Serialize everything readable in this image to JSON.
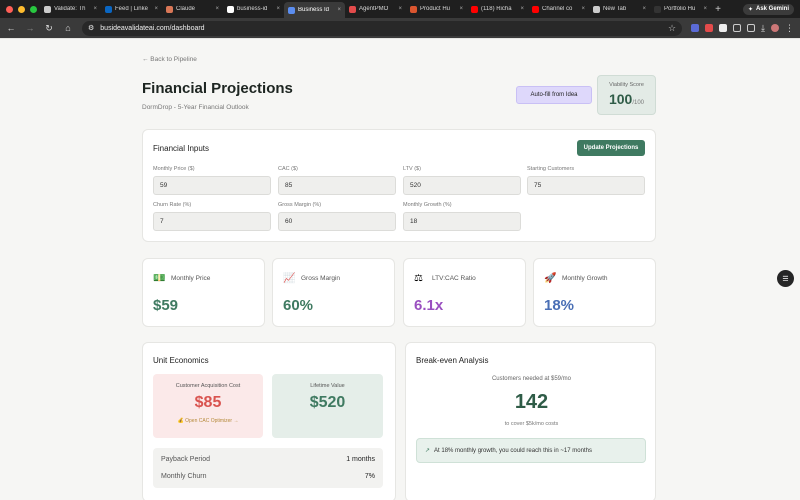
{
  "browser": {
    "tabs": [
      {
        "title": "Validate: Th",
        "color": "#cccccc"
      },
      {
        "title": "Feed | Linke",
        "color": "#0a66c2"
      },
      {
        "title": "Claude",
        "color": "#d97757"
      },
      {
        "title": "business-id",
        "color": "#ffffff"
      },
      {
        "title": "Business Id",
        "color": "#5b8def",
        "active": true
      },
      {
        "title": "AgentPMO",
        "color": "#e34b4b"
      },
      {
        "title": "Product Hu",
        "color": "#da552f"
      },
      {
        "title": "(118) Richa",
        "color": "#ff0000"
      },
      {
        "title": "Channel co",
        "color": "#ff0000"
      },
      {
        "title": "New Tab",
        "color": "#cccccc"
      },
      {
        "title": "Portfolio Hu",
        "color": "#333333"
      }
    ],
    "ask_gemini": "Ask Gemini",
    "url": "busideavalidateai.com/dashboard"
  },
  "header": {
    "back_link": "← Back to Pipeline",
    "title": "Financial Projections",
    "subtitle": "DormDrop - 5-Year Financial Outlook",
    "autofill_button": "Auto-fill from Idea",
    "viability_label": "Viability Score",
    "viability_value": "100",
    "viability_max": "/100"
  },
  "inputs": {
    "title": "Financial Inputs",
    "update_button": "Update Projections",
    "fields": [
      {
        "label": "Monthly Price ($)",
        "value": "59"
      },
      {
        "label": "CAC ($)",
        "value": "85"
      },
      {
        "label": "LTV ($)",
        "value": "520"
      },
      {
        "label": "Starting Customers",
        "value": "75"
      },
      {
        "label": "Churn Rate (%)",
        "value": "7"
      },
      {
        "label": "Gross Margin (%)",
        "value": "60"
      },
      {
        "label": "Monthly Growth (%)",
        "value": "18"
      }
    ]
  },
  "metrics": [
    {
      "icon": "💵",
      "icon_name": "money-icon",
      "label": "Monthly Price",
      "value": "$59",
      "color": "#3f7a61"
    },
    {
      "icon": "📈",
      "icon_name": "chart-icon",
      "label": "Gross Margin",
      "value": "60%",
      "color": "#3f7a61"
    },
    {
      "icon": "⚖",
      "icon_name": "scale-icon",
      "label": "LTV:CAC Ratio",
      "value": "6.1x",
      "color": "#9a4fc0"
    },
    {
      "icon": "🚀",
      "icon_name": "rocket-icon",
      "label": "Monthly Growth",
      "value": "18%",
      "color": "#4a6fb5"
    }
  ],
  "unit_economics": {
    "title": "Unit Economics",
    "cac_label": "Customer Acquisition Cost",
    "cac_value": "$85",
    "cac_hint": "💰 Open CAC Optimizer →",
    "ltv_label": "Lifetime Value",
    "ltv_value": "$520",
    "payback_label": "Payback Period",
    "payback_value": "1 months",
    "churn_label": "Monthly Churn",
    "churn_value": "7%"
  },
  "break_even": {
    "title": "Break-even Analysis",
    "needed_label": "Customers needed at $59/mo",
    "value": "142",
    "cover_label": "to cover $5k/mo costs",
    "note": "At 18% monthly growth, you could reach this in ~17 months"
  },
  "colors": {
    "accent": "#3f7a61",
    "cac": "#d9534f",
    "ltv": "#3f7a61"
  }
}
